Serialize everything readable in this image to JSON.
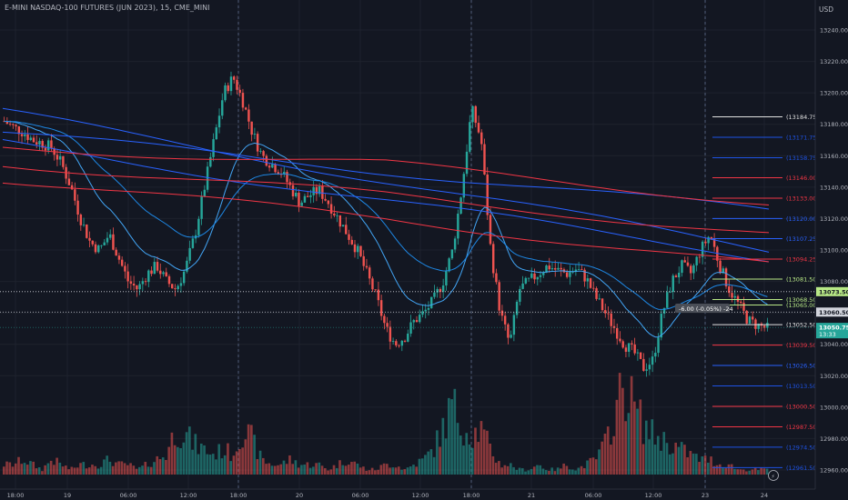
{
  "header": {
    "title": "E-MINI NASDAQ-100 FUTURES (JUN 2023), 15, CME_MINI",
    "currency": "USD"
  },
  "colors": {
    "background": "#131722",
    "grid": "#1e222d",
    "up": "#26a69a",
    "down": "#ef5350",
    "blue_line": "#2962ff",
    "light_blue": "#42a5f5",
    "red_line": "#f23645",
    "green_level": "#b8e986",
    "dark_level": "#1c1c1c"
  },
  "chart_data": {
    "type": "candlestick",
    "symbol": "E-MINI NASDAQ-100 FUTURES (JUN 2023)",
    "interval": "15",
    "exchange": "CME_MINI",
    "ylim": [
      12955,
      13250
    ],
    "y_ticks": [
      "13240.00",
      "13220.00",
      "13200.00",
      "13180.00",
      "13160.00",
      "13140.00",
      "13120.00",
      "13100.00",
      "13080.00",
      "13060.00",
      "13040.00",
      "13020.00",
      "13000.00",
      "12980.00",
      "12960.00"
    ],
    "x_ticks": [
      "18:00",
      "19",
      "06:00",
      "12:00",
      "18:00",
      "20",
      "06:00",
      "12:00",
      "18:00",
      "21",
      "06:00",
      "12:00",
      "23",
      "24"
    ],
    "close_path": [
      13182,
      13178,
      13175,
      13170,
      13168,
      13165,
      13155,
      13140,
      13120,
      13105,
      13100,
      13110,
      13095,
      13080,
      13075,
      13085,
      13090,
      13080,
      13075,
      13088,
      13110,
      13140,
      13170,
      13200,
      13210,
      13195,
      13175,
      13160,
      13155,
      13150,
      13140,
      13130,
      13135,
      13138,
      13130,
      13120,
      13110,
      13100,
      13085,
      13070,
      13050,
      13040,
      13045,
      13055,
      13060,
      13068,
      13080,
      13100,
      13140,
      13190,
      13170,
      13100,
      13060,
      13040,
      13075,
      13080,
      13085,
      13090,
      13087,
      13085,
      13088,
      13082,
      13070,
      13060,
      13050,
      13040,
      13035,
      13025,
      13030,
      13060,
      13080,
      13090,
      13085,
      13100,
      13110,
      13090,
      13075,
      13065,
      13055,
      13052,
      13050
    ],
    "volume_path": [
      2,
      2,
      3,
      2,
      1,
      3,
      2,
      1,
      2,
      2,
      2,
      3,
      2,
      2,
      1,
      2,
      3,
      4,
      9,
      8,
      6,
      5,
      4,
      5,
      4,
      9,
      7,
      3,
      2,
      2,
      3,
      2,
      2,
      2,
      1,
      2,
      3,
      2,
      1,
      1,
      2,
      2,
      1,
      2,
      3,
      5,
      9,
      14,
      10,
      8,
      9,
      5,
      2,
      2,
      1,
      1,
      2,
      1,
      1,
      2,
      1,
      2,
      3,
      6,
      12,
      18,
      14,
      10,
      8,
      7,
      6,
      5,
      4,
      3,
      3,
      2,
      2,
      1,
      1,
      1,
      1
    ],
    "ma_lines": [
      {
        "color": "#2962ff",
        "values": [
          13175,
          13125
        ]
      },
      {
        "color": "#2962ff",
        "values": [
          13188,
          13100
        ]
      },
      {
        "color": "#2962ff",
        "values": [
          13168,
          13095
        ]
      },
      {
        "color": "#f23645",
        "values": [
          13165,
          13155,
          13130
        ]
      },
      {
        "color": "#f23645",
        "values": [
          13155,
          13135,
          13110
        ]
      },
      {
        "color": "#f23645",
        "values": [
          13145,
          13120,
          13090
        ]
      }
    ],
    "price_levels": [
      {
        "label": "(13184.75)",
        "value": 13184.75,
        "color": "#1c1c1c"
      },
      {
        "label": "(13171.75)",
        "value": 13171.75,
        "color": "#1e53e5"
      },
      {
        "label": "(13158.75)",
        "value": 13158.75,
        "color": "#1e53e5"
      },
      {
        "label": "(13146.00)",
        "value": 13146.0,
        "color": "#f23645"
      },
      {
        "label": "(13133.00)",
        "value": 13133.0,
        "color": "#f23645"
      },
      {
        "label": "(13120.00)",
        "value": 13120.0,
        "color": "#2962ff"
      },
      {
        "label": "(13107.25)",
        "value": 13107.25,
        "color": "#2962ff"
      },
      {
        "label": "(13094.25)",
        "value": 13094.25,
        "color": "#f23645"
      },
      {
        "label": "(13081.50)",
        "value": 13081.5,
        "color": "#b8e986"
      },
      {
        "label": "(13068.50)",
        "value": 13068.5,
        "color": "#b8e986"
      },
      {
        "label": "(13065.00)",
        "value": 13065.0,
        "color": "#b8e986"
      },
      {
        "label": "(13052.50)",
        "value": 13052.5,
        "color": "#1c1c1c"
      },
      {
        "label": "(13039.50)",
        "value": 13039.5,
        "color": "#f23645"
      },
      {
        "label": "(13026.50)",
        "value": 13026.5,
        "color": "#2962ff"
      },
      {
        "label": "(13013.50)",
        "value": 13013.5,
        "color": "#1e53e5"
      },
      {
        "label": "(13000.50)",
        "value": 13000.5,
        "color": "#f23645"
      },
      {
        "label": "(12987.50)",
        "value": 12987.5,
        "color": "#f23645"
      },
      {
        "label": "(12974.50)",
        "value": 12974.5,
        "color": "#1e53e5"
      },
      {
        "label": "(12961.50)",
        "value": 12961.5,
        "color": "#1e53e5"
      }
    ],
    "axis_price_tags": [
      {
        "label": "13073.50",
        "value": 13073.5,
        "bg": "#b8e986",
        "fg": "#131722"
      },
      {
        "label": "13060.50",
        "value": 13060.5,
        "bg": "#d1d4dc",
        "fg": "#131722"
      },
      {
        "label": "13050.75",
        "sublabel": "13:33",
        "value": 13050.75,
        "bg": "#26a69a",
        "fg": "#ffffff"
      }
    ],
    "dotted_lines": [
      13073.5,
      13060.5
    ],
    "measure_label": "-6.00 (-0.05%) -24"
  }
}
